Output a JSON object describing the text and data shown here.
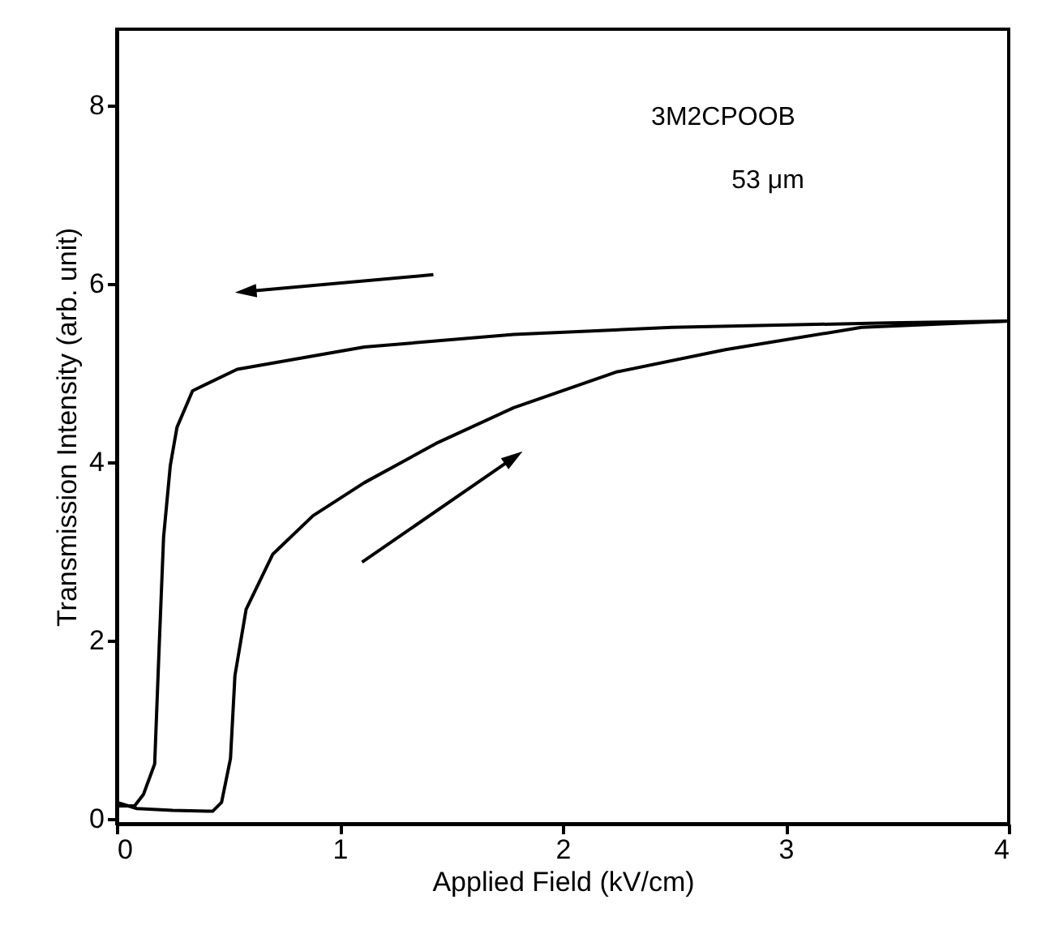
{
  "chart_data": {
    "type": "line",
    "xlabel": "Applied Field (kV/cm)",
    "ylabel": "Transmission Intensity (arb. unit)",
    "annotations": [
      "3M2CPOOB",
      "53 μm"
    ],
    "xlim": [
      0,
      4
    ],
    "ylim": [
      -0.05,
      8.85
    ],
    "xticks": [
      0,
      1,
      2,
      3,
      4
    ],
    "yticks": [
      0,
      2,
      4,
      6,
      8
    ],
    "grid": false,
    "marker": "none",
    "line_style": "solid",
    "series": [
      {
        "color": "#000000",
        "x": [
          0,
          0.09,
          0.25,
          0.43,
          0.47,
          0.51,
          0.53,
          0.58,
          0.7,
          0.88,
          1.11,
          1.44,
          1.78,
          2.24,
          2.73,
          3.34,
          4
        ],
        "values": [
          0.19,
          0.12,
          0.1,
          0.09,
          0.19,
          0.68,
          1.61,
          2.35,
          2.97,
          3.4,
          3.77,
          4.22,
          4.61,
          5.01,
          5.26,
          5.51,
          5.58
        ]
      },
      {
        "color": "#000000",
        "x": [
          4,
          3.46,
          2.49,
          1.78,
          1.11,
          0.54,
          0.34,
          0.27,
          0.24,
          0.21,
          0.19,
          0.17,
          0.12,
          0.08,
          0
        ],
        "values": [
          5.58,
          5.56,
          5.51,
          5.43,
          5.29,
          5.04,
          4.8,
          4.39,
          3.96,
          3.16,
          1.92,
          0.62,
          0.28,
          0.15,
          0.15
        ]
      }
    ]
  }
}
